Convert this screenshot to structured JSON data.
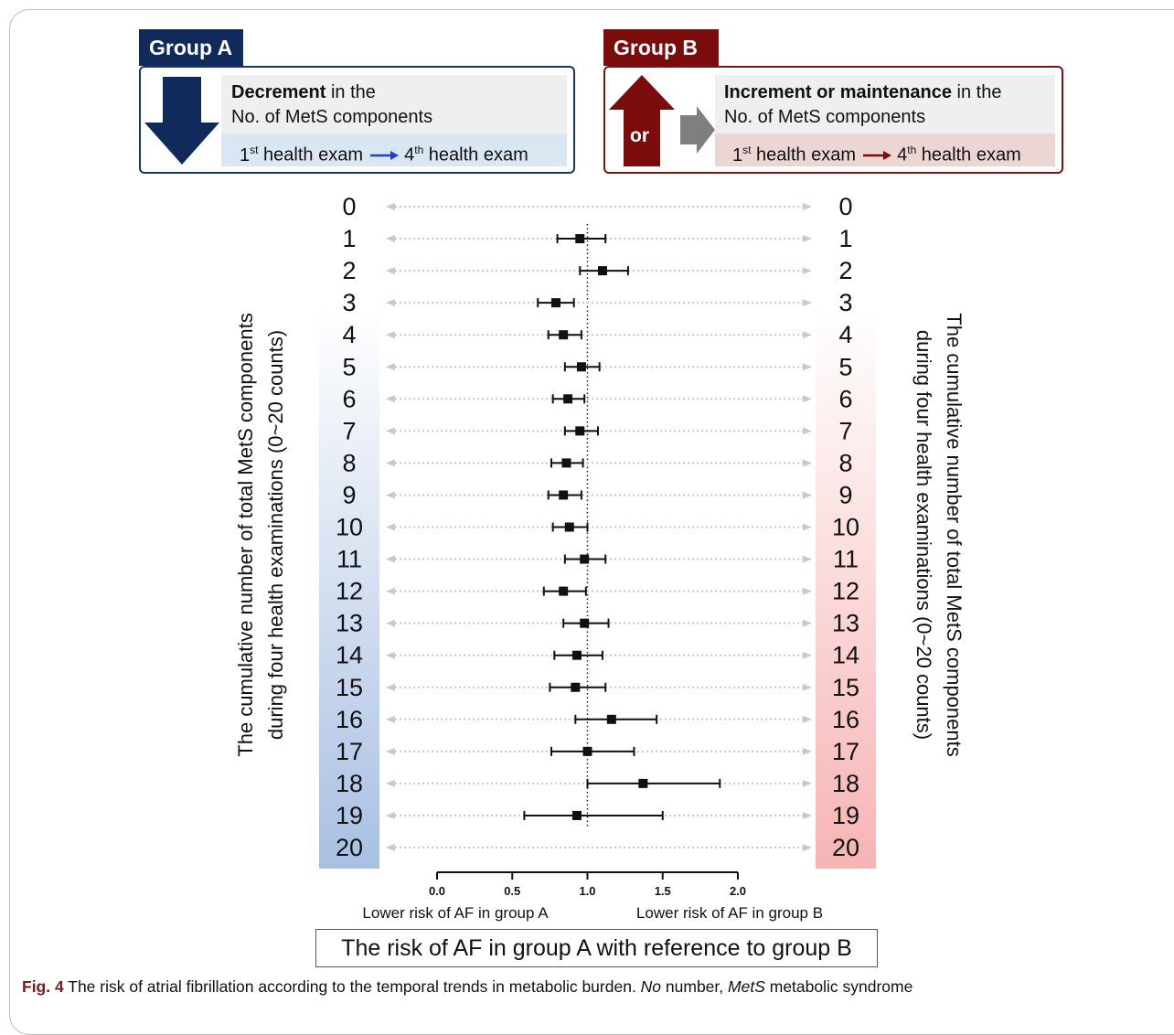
{
  "group_a": {
    "tab": "Group A",
    "bold": "Decrement",
    "line1_rest": " in the",
    "line2": "No. of MetS components",
    "exam_start": "1",
    "exam_start_sup": "st",
    "exam_start_rest": " health exam",
    "exam_end": "4",
    "exam_end_sup": "th",
    "exam_end_rest": " health exam",
    "color": "#112a5c"
  },
  "group_b": {
    "tab": "Group B",
    "or": "or",
    "bold": "Increment or maintenance",
    "line1_rest": " in the",
    "line2": "No. of MetS components",
    "exam_start": "1",
    "exam_start_sup": "st",
    "exam_start_rest": " health exam",
    "exam_end": "4",
    "exam_end_sup": "th",
    "exam_end_rest": " health exam",
    "color": "#7a0c0c"
  },
  "left_axis_title": [
    "The cumulative number of total MetS components",
    "during four health examinations (0~20 counts)"
  ],
  "right_axis_title": [
    "The cumulative number of total MetS components",
    "during four health examinations (0~20 counts)"
  ],
  "bottom_title": "The risk of AF in group A with reference to group B",
  "caption": {
    "label": "Fig. 4",
    "text1": " The risk of atrial fibrillation according to the temporal trends in metabolic burden. ",
    "abbr1": "No",
    "text2": " number, ",
    "abbr2": "MetS",
    "text3": " metabolic syndrome"
  },
  "chart_data": {
    "type": "forest",
    "xlim": [
      0.0,
      2.0
    ],
    "x_ticks": [
      "0.0",
      "0.5",
      "1.0",
      "1.5",
      "2.0"
    ],
    "x_tick_values": [
      0.0,
      0.5,
      1.0,
      1.5,
      2.0
    ],
    "reference_line": 1.0,
    "left_annotation": "Lower risk of AF in group A",
    "right_annotation": "Lower risk of AF in group B",
    "rows": [
      {
        "label": "0",
        "est": null,
        "lo": null,
        "hi": null
      },
      {
        "label": "1",
        "est": 0.95,
        "lo": 0.8,
        "hi": 1.12
      },
      {
        "label": "2",
        "est": 1.1,
        "lo": 0.95,
        "hi": 1.27
      },
      {
        "label": "3",
        "est": 0.79,
        "lo": 0.67,
        "hi": 0.91
      },
      {
        "label": "4",
        "est": 0.84,
        "lo": 0.74,
        "hi": 0.96
      },
      {
        "label": "5",
        "est": 0.96,
        "lo": 0.85,
        "hi": 1.08
      },
      {
        "label": "6",
        "est": 0.87,
        "lo": 0.77,
        "hi": 0.98
      },
      {
        "label": "7",
        "est": 0.95,
        "lo": 0.85,
        "hi": 1.07
      },
      {
        "label": "8",
        "est": 0.86,
        "lo": 0.76,
        "hi": 0.97
      },
      {
        "label": "9",
        "est": 0.84,
        "lo": 0.74,
        "hi": 0.96
      },
      {
        "label": "10",
        "est": 0.88,
        "lo": 0.77,
        "hi": 1.0
      },
      {
        "label": "11",
        "est": 0.98,
        "lo": 0.85,
        "hi": 1.12
      },
      {
        "label": "12",
        "est": 0.84,
        "lo": 0.71,
        "hi": 0.99
      },
      {
        "label": "13",
        "est": 0.98,
        "lo": 0.84,
        "hi": 1.14
      },
      {
        "label": "14",
        "est": 0.93,
        "lo": 0.78,
        "hi": 1.1
      },
      {
        "label": "15",
        "est": 0.92,
        "lo": 0.75,
        "hi": 1.12
      },
      {
        "label": "16",
        "est": 1.16,
        "lo": 0.92,
        "hi": 1.46
      },
      {
        "label": "17",
        "est": 1.0,
        "lo": 0.76,
        "hi": 1.31
      },
      {
        "label": "18",
        "est": 1.37,
        "lo": 1.0,
        "hi": 1.88
      },
      {
        "label": "19",
        "est": 0.93,
        "lo": 0.58,
        "hi": 1.5
      },
      {
        "label": "20",
        "est": null,
        "lo": null,
        "hi": null
      }
    ],
    "left_gradient": [
      "#ffffff",
      "#a9c0e3"
    ],
    "right_gradient": [
      "#ffffff",
      "#f7b4b4"
    ]
  }
}
